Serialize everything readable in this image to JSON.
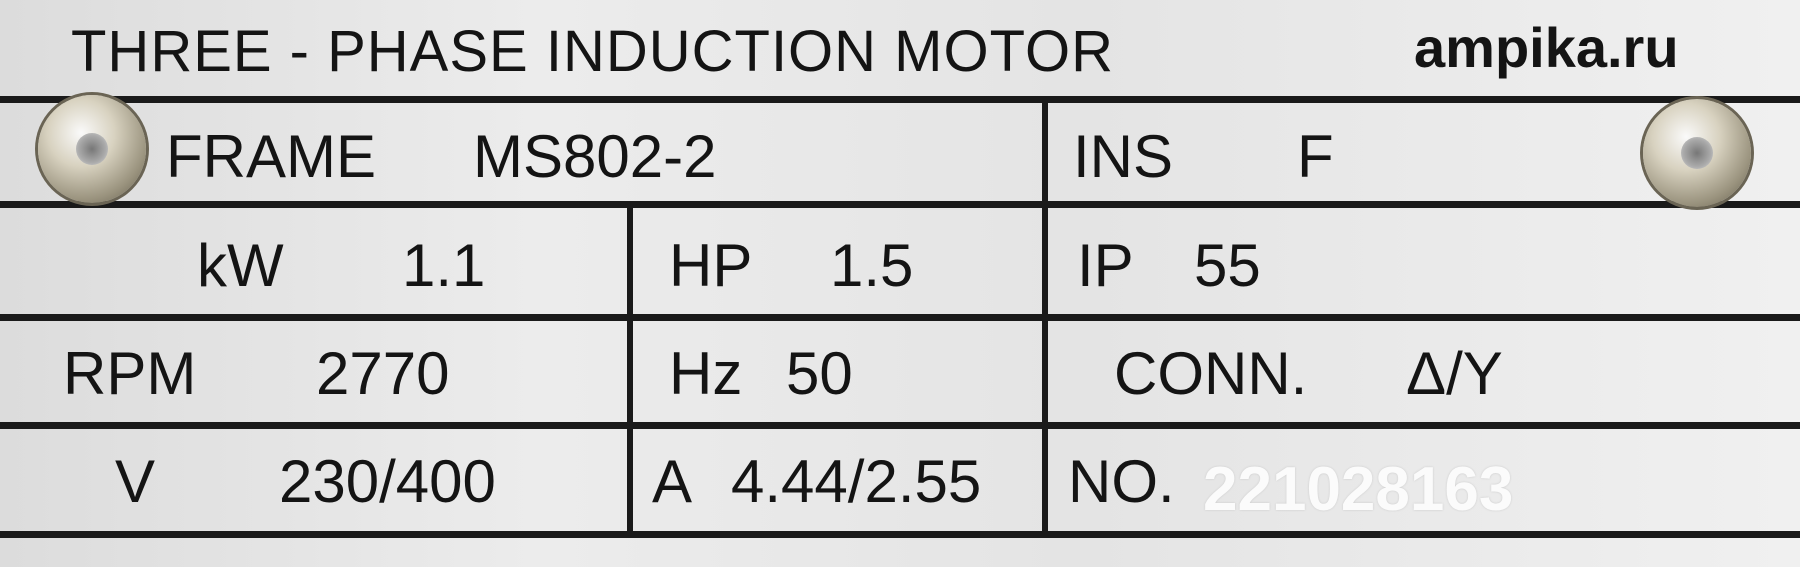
{
  "title": "THREE - PHASE  INDUCTION  MOTOR",
  "brand": "ampika.ru",
  "rows": [
    [
      {
        "label": "FRAME",
        "value": "MS802-2"
      },
      {
        "label": "INS",
        "value": "F"
      }
    ],
    [
      {
        "label": "kW",
        "value": "1.1"
      },
      {
        "label": "HP",
        "value": "1.5"
      },
      {
        "label": "IP",
        "value": "55"
      }
    ],
    [
      {
        "label": "RPM",
        "value": "2770"
      },
      {
        "label": "Hz",
        "value": "50"
      },
      {
        "label": "CONN.",
        "value": "Δ/Y"
      }
    ],
    [
      {
        "label": "V",
        "value": "230/400"
      },
      {
        "label": "A",
        "value": "4.44/2.55"
      },
      {
        "label": "NO.",
        "value": "221028163"
      }
    ]
  ],
  "icons": [
    "screw-icon",
    "screw-icon"
  ]
}
